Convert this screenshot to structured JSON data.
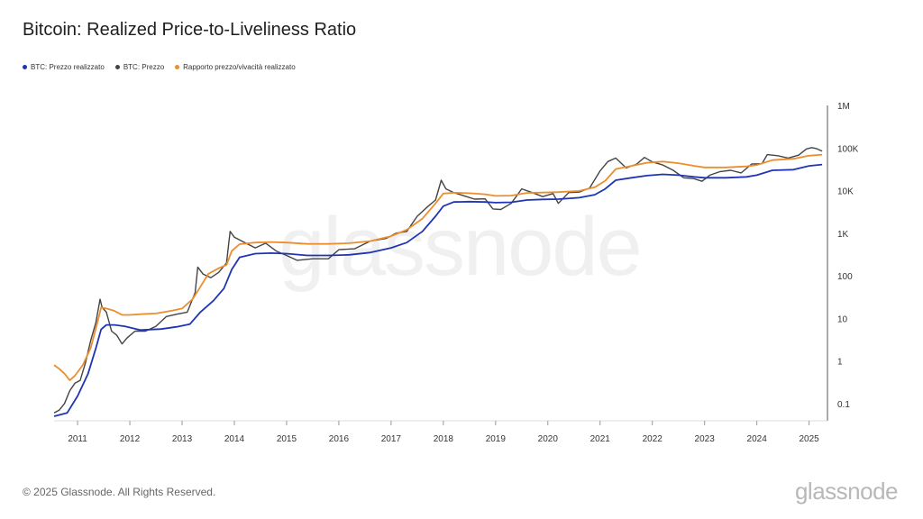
{
  "header": {
    "title": "Bitcoin: Realized Price-to-Liveliness Ratio"
  },
  "footer": {
    "copyright": "© 2025 Glassnode. All Rights Reserved.",
    "logo_text": "glassnode"
  },
  "watermark": "glassnode",
  "chart_data": {
    "type": "line",
    "title": "Bitcoin: Realized Price-to-Liveliness Ratio",
    "xlabel": "",
    "ylabel": "",
    "y_scale": "log",
    "xlim": [
      2010.55,
      2025.3
    ],
    "ylim": [
      0.05,
      1000000
    ],
    "x_ticks": [
      2011,
      2012,
      2013,
      2014,
      2015,
      2016,
      2017,
      2018,
      2019,
      2020,
      2021,
      2022,
      2023,
      2024,
      2025
    ],
    "x_tick_labels": [
      "2011",
      "2012",
      "2013",
      "2014",
      "2015",
      "2016",
      "2017",
      "2018",
      "2019",
      "2020",
      "2021",
      "2022",
      "2023",
      "2024",
      "2025"
    ],
    "y_ticks": [
      0.1,
      1,
      10,
      100,
      1000,
      10000,
      100000,
      1000000
    ],
    "y_tick_labels": [
      "0.1",
      "1",
      "10",
      "100",
      "1K",
      "10K",
      "100K",
      "1M"
    ],
    "legend_position": "top-left",
    "grid": false,
    "series": [
      {
        "name": "BTC: Prezzo realizzato",
        "color": "#1f35b5",
        "x": [
          2010.55,
          2010.8,
          2011.0,
          2011.2,
          2011.35,
          2011.45,
          2011.55,
          2011.7,
          2011.9,
          2012.2,
          2012.6,
          2012.9,
          2013.15,
          2013.35,
          2013.6,
          2013.8,
          2013.95,
          2014.1,
          2014.4,
          2014.7,
          2015.0,
          2015.4,
          2015.8,
          2016.2,
          2016.6,
          2017.0,
          2017.3,
          2017.6,
          2017.85,
          2018.0,
          2018.2,
          2018.5,
          2018.8,
          2019.0,
          2019.3,
          2019.6,
          2019.9,
          2020.2,
          2020.6,
          2020.9,
          2021.1,
          2021.3,
          2021.6,
          2021.9,
          2022.2,
          2022.5,
          2022.8,
          2023.0,
          2023.4,
          2023.8,
          2024.0,
          2024.3,
          2024.7,
          2025.0,
          2025.25
        ],
        "values": [
          0.05,
          0.06,
          0.15,
          0.5,
          2.0,
          5.5,
          7.0,
          7.0,
          6.5,
          5.3,
          5.6,
          6.3,
          7.3,
          14,
          26,
          50,
          140,
          270,
          330,
          340,
          330,
          300,
          300,
          310,
          350,
          450,
          600,
          1100,
          2500,
          4300,
          5400,
          5500,
          5400,
          5200,
          5300,
          6000,
          6200,
          6300,
          6800,
          8000,
          11000,
          17500,
          20000,
          22500,
          24000,
          23000,
          21000,
          20000,
          20000,
          21000,
          23000,
          30000,
          31000,
          38000,
          41000
        ]
      },
      {
        "name": "BTC: Prezzo",
        "color": "#444444",
        "x": [
          2010.55,
          2010.65,
          2010.75,
          2010.85,
          2010.95,
          2011.05,
          2011.15,
          2011.25,
          2011.35,
          2011.43,
          2011.47,
          2011.55,
          2011.65,
          2011.75,
          2011.85,
          2011.95,
          2012.1,
          2012.3,
          2012.5,
          2012.7,
          2012.9,
          2013.1,
          2013.25,
          2013.3,
          2013.4,
          2013.55,
          2013.7,
          2013.85,
          2013.92,
          2014.0,
          2014.2,
          2014.4,
          2014.6,
          2014.8,
          2015.0,
          2015.2,
          2015.5,
          2015.8,
          2016.0,
          2016.3,
          2016.6,
          2016.9,
          2017.1,
          2017.3,
          2017.5,
          2017.7,
          2017.85,
          2017.96,
          2018.05,
          2018.2,
          2018.4,
          2018.6,
          2018.8,
          2018.95,
          2019.1,
          2019.3,
          2019.5,
          2019.7,
          2019.9,
          2020.1,
          2020.2,
          2020.4,
          2020.6,
          2020.8,
          2021.0,
          2021.15,
          2021.3,
          2021.5,
          2021.7,
          2021.85,
          2022.0,
          2022.2,
          2022.4,
          2022.6,
          2022.8,
          2022.95,
          2023.1,
          2023.3,
          2023.5,
          2023.7,
          2023.9,
          2024.1,
          2024.2,
          2024.4,
          2024.6,
          2024.8,
          2024.95,
          2025.05,
          2025.15,
          2025.25
        ],
        "values": [
          0.06,
          0.07,
          0.1,
          0.2,
          0.3,
          0.35,
          0.9,
          3.0,
          8.0,
          28.0,
          18.0,
          14.0,
          5.0,
          4.0,
          2.5,
          3.5,
          5.0,
          5.0,
          6.5,
          11.0,
          12.5,
          14.0,
          40.0,
          160.0,
          110.0,
          90.0,
          120.0,
          200.0,
          1100.0,
          800.0,
          600.0,
          450.0,
          580.0,
          380.0,
          300.0,
          230.0,
          250.0,
          250.0,
          410.0,
          430.0,
          650.0,
          750.0,
          1000.0,
          1100.0,
          2500.0,
          4200.0,
          6000.0,
          17500.0,
          11000.0,
          9000.0,
          7500.0,
          6300.0,
          6400.0,
          3700.0,
          3600.0,
          5000.0,
          11000.0,
          9000.0,
          7200.0,
          8500.0,
          5000.0,
          9000.0,
          9200.0,
          11500.0,
          29000.0,
          48000.0,
          58000.0,
          34000.0,
          42000.0,
          60000.0,
          47000.0,
          40000.0,
          30000.0,
          20000.0,
          19000.0,
          16500.0,
          23000.0,
          28000.0,
          30000.0,
          26000.0,
          42000.0,
          43000.0,
          70000.0,
          66000.0,
          58000.0,
          68000.0,
          95000.0,
          102000.0,
          96000.0,
          84000.0
        ]
      },
      {
        "name": "Rapporto prezzo/vivacità realizzato",
        "color": "#ec8e2d",
        "x": [
          2010.55,
          2010.65,
          2010.75,
          2010.85,
          2010.95,
          2011.1,
          2011.25,
          2011.38,
          2011.45,
          2011.55,
          2011.7,
          2011.85,
          2012.0,
          2012.2,
          2012.5,
          2012.8,
          2013.0,
          2013.2,
          2013.35,
          2013.5,
          2013.7,
          2013.85,
          2013.95,
          2014.1,
          2014.4,
          2014.7,
          2015.0,
          2015.4,
          2015.8,
          2016.2,
          2016.6,
          2017.0,
          2017.3,
          2017.6,
          2017.85,
          2018.0,
          2018.2,
          2018.5,
          2018.8,
          2019.0,
          2019.3,
          2019.6,
          2019.9,
          2020.2,
          2020.6,
          2020.9,
          2021.1,
          2021.3,
          2021.6,
          2021.9,
          2022.2,
          2022.5,
          2022.8,
          2023.0,
          2023.4,
          2023.8,
          2024.0,
          2024.3,
          2024.7,
          2025.0,
          2025.25
        ],
        "values": [
          0.8,
          0.65,
          0.5,
          0.35,
          0.45,
          0.8,
          2.0,
          8.0,
          18.0,
          17.0,
          15.0,
          12.0,
          12.0,
          12.5,
          13.0,
          15.0,
          17.0,
          28.0,
          55.0,
          110.0,
          150.0,
          180.0,
          380.0,
          550.0,
          600.0,
          620.0,
          600.0,
          560.0,
          560.0,
          580.0,
          650.0,
          850.0,
          1200.0,
          2200.0,
          5000.0,
          8500.0,
          8900.0,
          8700.0,
          8200.0,
          7500.0,
          7600.0,
          8800.0,
          9000.0,
          9200.0,
          9800.0,
          12000.0,
          17000.0,
          32000.0,
          38000.0,
          45000.0,
          48000.0,
          44000.0,
          38000.0,
          35000.0,
          35000.0,
          37000.0,
          40000.0,
          52000.0,
          56000.0,
          66000.0,
          70000.0
        ]
      }
    ]
  }
}
